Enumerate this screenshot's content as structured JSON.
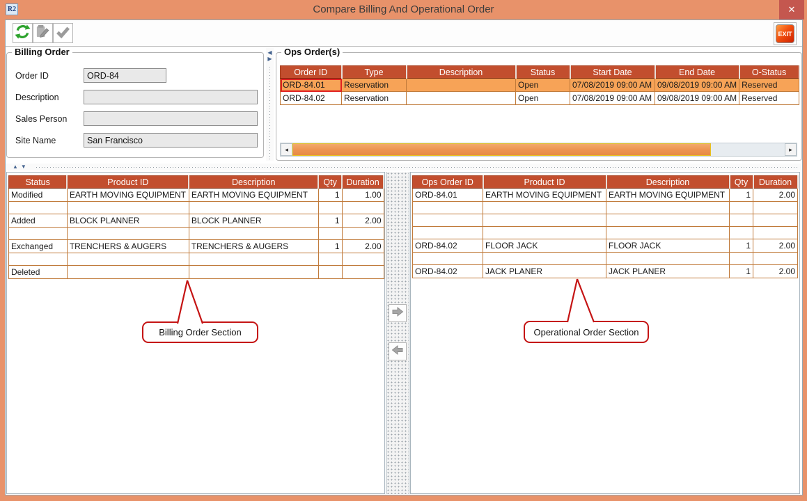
{
  "window": {
    "title": "Compare Billing And Operational Order",
    "app_badge": "R2"
  },
  "titlebar": {
    "close_glyph": "✕"
  },
  "toolbar": {
    "icons": [
      "refresh-icon",
      "edit-disabled-icon",
      "confirm-icon"
    ],
    "exit_label": "EXIT"
  },
  "billing_order": {
    "legend": "Billing Order",
    "fields": [
      {
        "label": "Order ID",
        "value": "ORD-84"
      },
      {
        "label": "Description",
        "value": ""
      },
      {
        "label": "Sales Person",
        "value": ""
      },
      {
        "label": "Site Name",
        "value": "San Francisco"
      }
    ]
  },
  "ops_orders": {
    "legend": "Ops Order(s)",
    "columns": [
      "Order ID",
      "Type",
      "Description",
      "Status",
      "Start Date",
      "End Date",
      "O-Status"
    ],
    "rows": [
      [
        "ORD-84.01",
        "Reservation",
        "",
        "Open",
        "07/08/2019 09:00 AM",
        "09/08/2019 09:00 AM",
        "Reserved"
      ],
      [
        "ORD-84.02",
        "Reservation",
        "",
        "Open",
        "07/08/2019 09:00 AM",
        "09/08/2019 09:00 AM",
        "Reserved"
      ]
    ],
    "selected_row": 0
  },
  "billing_items": {
    "columns": [
      "Status",
      "Product ID",
      "Description",
      "Qty",
      "Duration"
    ],
    "rows": [
      [
        "Modified",
        "EARTH MOVING EQUIPMENT",
        "EARTH MOVING EQUIPMENT",
        "1",
        "1.00"
      ],
      [
        "",
        "",
        "",
        "",
        ""
      ],
      [
        "Added",
        "BLOCK PLANNER",
        "BLOCK PLANNER",
        "1",
        "2.00"
      ],
      [
        "",
        "",
        "",
        "",
        ""
      ],
      [
        "Exchanged",
        "TRENCHERS & AUGERS",
        "TRENCHERS & AUGERS",
        "1",
        "2.00"
      ],
      [
        "",
        "",
        "",
        "",
        ""
      ],
      [
        "Deleted",
        "",
        "",
        "",
        ""
      ]
    ],
    "callout": "Billing Order Section"
  },
  "ops_items": {
    "columns": [
      "Ops Order ID",
      "Product ID",
      "Description",
      "Qty",
      "Duration"
    ],
    "rows": [
      [
        "ORD-84.01",
        "EARTH MOVING EQUIPMENT",
        "EARTH MOVING EQUIPMENT",
        "1",
        "2.00"
      ],
      [
        "",
        "",
        "",
        "",
        ""
      ],
      [
        "",
        "",
        "",
        "",
        ""
      ],
      [
        "",
        "",
        "",
        "",
        ""
      ],
      [
        "ORD-84.02",
        "FLOOR JACK",
        "FLOOR JACK",
        "1",
        "2.00"
      ],
      [
        "",
        "",
        "",
        "",
        ""
      ],
      [
        "ORD-84.02",
        "JACK PLANER",
        "JACK PLANER",
        "1",
        "2.00"
      ]
    ],
    "callout": "Operational Order Section"
  },
  "colors": {
    "titlebar": "#E8926A",
    "close_button": "#C4574F",
    "table_header": "#C24E2E",
    "selected_row": "#F7A357",
    "grid_line": "#C07A3A",
    "scroll_thumb": "#EC9350",
    "scroll_thumb_border": "#E8C21F",
    "callout_border": "#C51414"
  }
}
